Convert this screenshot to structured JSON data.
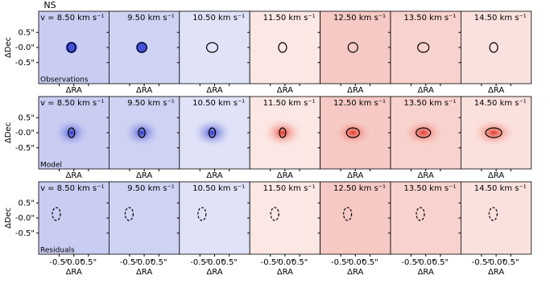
{
  "chart_data": {
    "type": "channel-map",
    "title": "NS",
    "channels": [
      "v = 8.50 km s⁻¹",
      "9.50 km s⁻¹",
      "10.50 km s⁻¹",
      "11.50 km s⁻¹",
      "12.50 km s⁻¹",
      "13.50 km s⁻¹",
      "14.50 km s⁻¹"
    ],
    "channel_colors": [
      "#c9cdf2",
      "#cfd3f3",
      "#e0e3f7",
      "#fbe7e4",
      "#f6c9c4",
      "#f8d2cd",
      "#fbe1de"
    ],
    "rows": [
      "Observations",
      "Model",
      "Residuals"
    ],
    "xlabel": "ΔRA",
    "ylabel": "ΔDec",
    "xlim": [
      -1.2,
      1.2
    ],
    "ylim": [
      -1.2,
      1.2
    ],
    "xticks": [
      {
        "value": -0.5,
        "label": "-0.5\""
      },
      {
        "value": 0,
        "label": "-0.0\""
      },
      {
        "value": 0.5,
        "label": "0.5\""
      }
    ],
    "yticks": [
      {
        "value": 0.5,
        "label": "0.5\""
      },
      {
        "value": 0,
        "label": "-0.0\""
      },
      {
        "value": -0.5,
        "label": "-0.5\""
      }
    ]
  }
}
